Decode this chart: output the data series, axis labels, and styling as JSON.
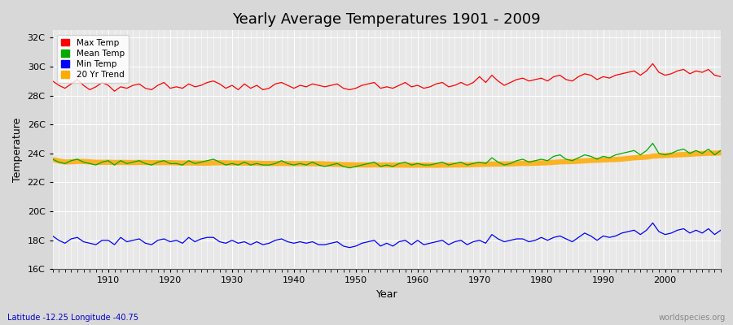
{
  "title": "Yearly Average Temperatures 1901 - 2009",
  "xlabel": "Year",
  "ylabel": "Temperature",
  "footnote_left": "Latitude -12.25 Longitude -40.75",
  "footnote_right": "worldspecies.org",
  "ylim": [
    16,
    32.5
  ],
  "xlim": [
    1901,
    2009
  ],
  "yticks": [
    16,
    18,
    20,
    22,
    24,
    26,
    28,
    30,
    32
  ],
  "ytick_labels": [
    "16C",
    "18C",
    "20C",
    "22C",
    "24C",
    "26C",
    "28C",
    "30C",
    "32C"
  ],
  "xticks": [
    1910,
    1920,
    1930,
    1940,
    1950,
    1960,
    1970,
    1980,
    1990,
    2000
  ],
  "bg_color": "#d8d8d8",
  "plot_bg_color": "#e8e8e8",
  "grid_color": "#ffffff",
  "max_color": "#ff0000",
  "mean_color": "#00aa00",
  "min_color": "#0000ff",
  "trend_color": "#ffaa00",
  "legend_labels": [
    "Max Temp",
    "Mean Temp",
    "Min Temp",
    "20 Yr Trend"
  ],
  "years": [
    1901,
    1902,
    1903,
    1904,
    1905,
    1906,
    1907,
    1908,
    1909,
    1910,
    1911,
    1912,
    1913,
    1914,
    1915,
    1916,
    1917,
    1918,
    1919,
    1920,
    1921,
    1922,
    1923,
    1924,
    1925,
    1926,
    1927,
    1928,
    1929,
    1930,
    1931,
    1932,
    1933,
    1934,
    1935,
    1936,
    1937,
    1938,
    1939,
    1940,
    1941,
    1942,
    1943,
    1944,
    1945,
    1946,
    1947,
    1948,
    1949,
    1950,
    1951,
    1952,
    1953,
    1954,
    1955,
    1956,
    1957,
    1958,
    1959,
    1960,
    1961,
    1962,
    1963,
    1964,
    1965,
    1966,
    1967,
    1968,
    1969,
    1970,
    1971,
    1972,
    1973,
    1974,
    1975,
    1976,
    1977,
    1978,
    1979,
    1980,
    1981,
    1982,
    1983,
    1984,
    1985,
    1986,
    1987,
    1988,
    1989,
    1990,
    1991,
    1992,
    1993,
    1994,
    1995,
    1996,
    1997,
    1998,
    1999,
    2000,
    2001,
    2002,
    2003,
    2004,
    2005,
    2006,
    2007,
    2008,
    2009
  ],
  "max_temp": [
    29.0,
    28.7,
    28.5,
    28.8,
    29.1,
    28.7,
    28.4,
    28.6,
    28.9,
    28.7,
    28.3,
    28.6,
    28.5,
    28.7,
    28.8,
    28.5,
    28.4,
    28.7,
    28.9,
    28.5,
    28.6,
    28.5,
    28.8,
    28.6,
    28.7,
    28.9,
    29.0,
    28.8,
    28.5,
    28.7,
    28.4,
    28.8,
    28.5,
    28.7,
    28.4,
    28.5,
    28.8,
    28.9,
    28.7,
    28.5,
    28.7,
    28.6,
    28.8,
    28.7,
    28.6,
    28.7,
    28.8,
    28.5,
    28.4,
    28.5,
    28.7,
    28.8,
    28.9,
    28.5,
    28.6,
    28.5,
    28.7,
    28.9,
    28.6,
    28.7,
    28.5,
    28.6,
    28.8,
    28.9,
    28.6,
    28.7,
    28.9,
    28.7,
    28.9,
    29.3,
    28.9,
    29.4,
    29.0,
    28.7,
    28.9,
    29.1,
    29.2,
    29.0,
    29.1,
    29.2,
    29.0,
    29.3,
    29.4,
    29.1,
    29.0,
    29.3,
    29.5,
    29.4,
    29.1,
    29.3,
    29.2,
    29.4,
    29.5,
    29.6,
    29.7,
    29.4,
    29.7,
    30.2,
    29.6,
    29.4,
    29.5,
    29.7,
    29.8,
    29.5,
    29.7,
    29.6,
    29.8,
    29.4,
    29.3
  ],
  "mean_temp": [
    23.6,
    23.4,
    23.3,
    23.5,
    23.6,
    23.4,
    23.3,
    23.2,
    23.4,
    23.5,
    23.2,
    23.5,
    23.3,
    23.4,
    23.5,
    23.3,
    23.2,
    23.4,
    23.5,
    23.3,
    23.3,
    23.2,
    23.5,
    23.3,
    23.4,
    23.5,
    23.6,
    23.4,
    23.2,
    23.3,
    23.2,
    23.4,
    23.2,
    23.3,
    23.2,
    23.2,
    23.3,
    23.5,
    23.3,
    23.2,
    23.3,
    23.2,
    23.4,
    23.2,
    23.1,
    23.2,
    23.3,
    23.1,
    23.0,
    23.1,
    23.2,
    23.3,
    23.4,
    23.1,
    23.2,
    23.1,
    23.3,
    23.4,
    23.2,
    23.3,
    23.2,
    23.2,
    23.3,
    23.4,
    23.2,
    23.3,
    23.4,
    23.2,
    23.3,
    23.4,
    23.3,
    23.7,
    23.4,
    23.2,
    23.3,
    23.5,
    23.6,
    23.4,
    23.5,
    23.6,
    23.5,
    23.8,
    23.9,
    23.6,
    23.5,
    23.7,
    23.9,
    23.8,
    23.6,
    23.8,
    23.7,
    23.9,
    24.0,
    24.1,
    24.2,
    23.9,
    24.2,
    24.7,
    24.0,
    23.9,
    24.0,
    24.2,
    24.3,
    24.0,
    24.2,
    24.0,
    24.3,
    23.9,
    24.2
  ],
  "min_temp": [
    18.3,
    18.0,
    17.8,
    18.1,
    18.2,
    17.9,
    17.8,
    17.7,
    18.0,
    18.0,
    17.7,
    18.2,
    17.9,
    18.0,
    18.1,
    17.8,
    17.7,
    18.0,
    18.1,
    17.9,
    18.0,
    17.8,
    18.2,
    17.9,
    18.1,
    18.2,
    18.2,
    17.9,
    17.8,
    18.0,
    17.8,
    17.9,
    17.7,
    17.9,
    17.7,
    17.8,
    18.0,
    18.1,
    17.9,
    17.8,
    17.9,
    17.8,
    17.9,
    17.7,
    17.7,
    17.8,
    17.9,
    17.6,
    17.5,
    17.6,
    17.8,
    17.9,
    18.0,
    17.6,
    17.8,
    17.6,
    17.9,
    18.0,
    17.7,
    18.0,
    17.7,
    17.8,
    17.9,
    18.0,
    17.7,
    17.9,
    18.0,
    17.7,
    17.9,
    18.0,
    17.8,
    18.4,
    18.1,
    17.9,
    18.0,
    18.1,
    18.1,
    17.9,
    18.0,
    18.2,
    18.0,
    18.2,
    18.3,
    18.1,
    17.9,
    18.2,
    18.5,
    18.3,
    18.0,
    18.3,
    18.2,
    18.3,
    18.5,
    18.6,
    18.7,
    18.4,
    18.7,
    19.2,
    18.6,
    18.4,
    18.5,
    18.7,
    18.8,
    18.5,
    18.7,
    18.5,
    18.8,
    18.4,
    18.7
  ]
}
